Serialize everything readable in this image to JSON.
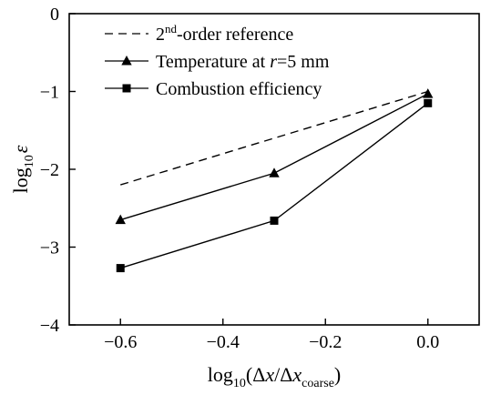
{
  "chart_data": {
    "type": "line",
    "xlabel": {
      "prefix": "log",
      "prefix_sub": "10",
      "open": "(Δ",
      "var1": "x",
      "slash": "/Δ",
      "var2": "x",
      "var2_sub": "coarse",
      "close": ")"
    },
    "ylabel": {
      "prefix": "log",
      "prefix_sub": "10",
      "var": "ε"
    },
    "xlim": [
      -0.7,
      0.1
    ],
    "ylim": [
      -4,
      0
    ],
    "xticks": [
      -0.6,
      -0.4,
      -0.2,
      0.0
    ],
    "xtick_labels": [
      "−0.6",
      "−0.4",
      "−0.2",
      "0.0"
    ],
    "yticks": [
      0,
      -1,
      -2,
      -3,
      -4
    ],
    "ytick_labels": [
      "0",
      "−1",
      "−2",
      "−3",
      "−4"
    ],
    "grid": false,
    "legend_position": "top-left",
    "legend": [
      {
        "key": "reference",
        "text_parts": {
          "pre": "2",
          "sup": "nd",
          "post": "-order reference"
        }
      },
      {
        "key": "temperature",
        "text_parts": {
          "pre": "Temperature at ",
          "ital": "r",
          "post": "=5 mm"
        }
      },
      {
        "key": "combustion",
        "text_parts": {
          "pre": "Combustion efficiency"
        }
      }
    ],
    "series": [
      {
        "key": "reference",
        "name": "2nd-order reference",
        "style": "dashed",
        "marker": "none",
        "color": "#000000",
        "x": [
          -0.6,
          0.0
        ],
        "y": [
          -2.2,
          -1.0
        ]
      },
      {
        "key": "temperature",
        "name": "Temperature at r=5 mm",
        "style": "solid",
        "marker": "triangle",
        "color": "#000000",
        "x": [
          -0.6,
          -0.3,
          0.0
        ],
        "y": [
          -2.65,
          -2.05,
          -1.03
        ]
      },
      {
        "key": "combustion",
        "name": "Combustion efficiency",
        "style": "solid",
        "marker": "square",
        "color": "#000000",
        "x": [
          -0.6,
          -0.3,
          0.0
        ],
        "y": [
          -3.27,
          -2.66,
          -1.15
        ]
      }
    ]
  }
}
